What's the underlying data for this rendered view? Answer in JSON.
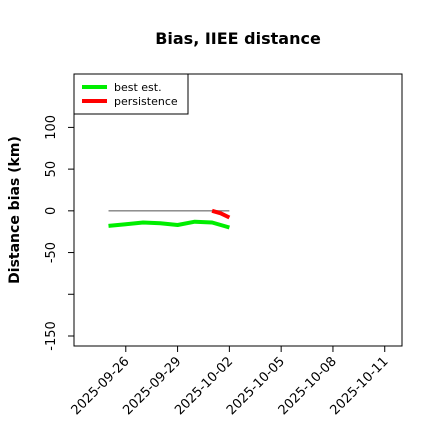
{
  "chart_data": {
    "type": "line",
    "title": "Bias, IIEE distance",
    "xlabel": "",
    "ylabel": "Distance bias (km)",
    "x_ticks": [
      "2025-09-26",
      "2025-09-29",
      "2025-10-02",
      "2025-10-05",
      "2025-10-08",
      "2025-10-11"
    ],
    "x_range": [
      "2025-09-23",
      "2025-10-12"
    ],
    "y_ticks": [
      -150,
      -100,
      -50,
      0,
      50,
      100
    ],
    "y_tick_labels": [
      "-150",
      "",
      "-50",
      "0",
      "50",
      "100"
    ],
    "ylim": [
      -162,
      164
    ],
    "grid": false,
    "legend_position": "top-left",
    "reference_line": {
      "y": 0,
      "x_start": "2025-09-25",
      "x_end": "2025-10-02",
      "color": "#808080"
    },
    "series": [
      {
        "name": "best est.",
        "color": "#00ee00",
        "x": [
          "2025-09-25",
          "2025-09-26",
          "2025-09-27",
          "2025-09-28",
          "2025-09-29",
          "2025-09-30",
          "2025-10-01",
          "2025-10-02"
        ],
        "y": [
          -18,
          -16,
          -14,
          -15,
          -17,
          -13,
          -14,
          -20
        ]
      },
      {
        "name": "persistence",
        "color": "#ff0000",
        "x": [
          "2025-10-01",
          "2025-10-01T12:00",
          "2025-10-02"
        ],
        "y": [
          0,
          -3,
          -8
        ]
      }
    ]
  }
}
